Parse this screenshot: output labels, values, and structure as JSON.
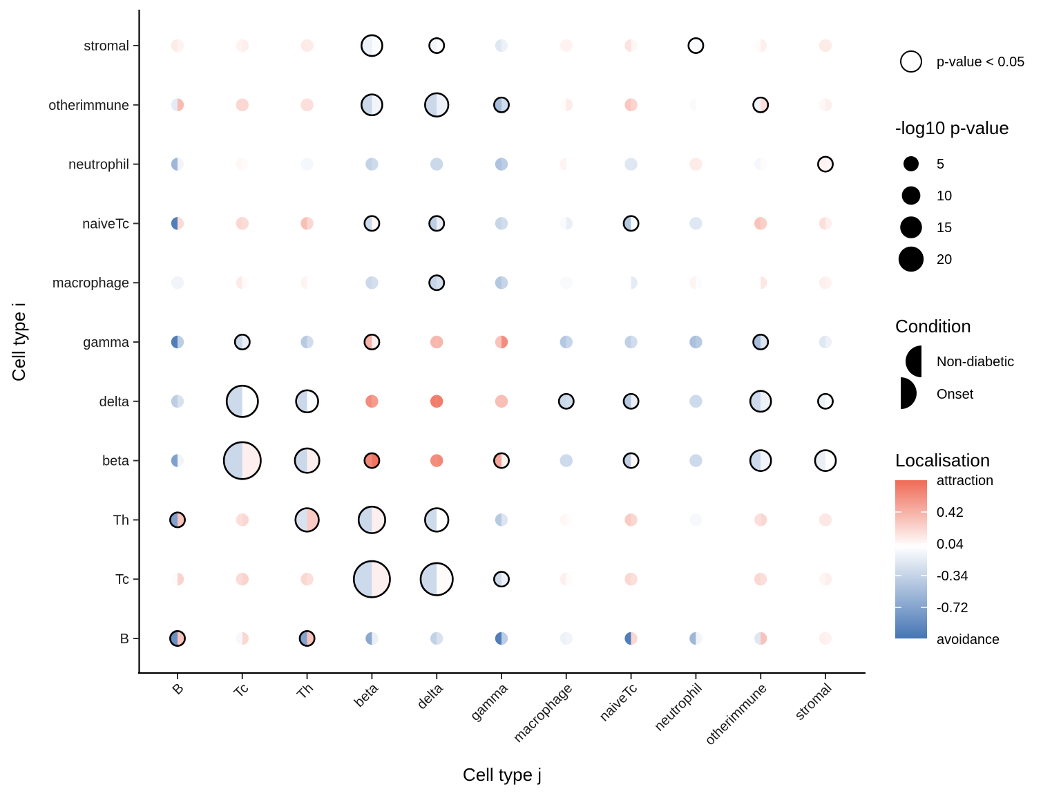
{
  "chart_data": {
    "type": "scatter",
    "subtype": "split-bubble matrix (half-circles per condition)",
    "xlabel": "Cell type j",
    "ylabel": "Cell type i",
    "x_categories": [
      "B",
      "Tc",
      "Th",
      "beta",
      "delta",
      "gamma",
      "macrophage",
      "naiveTc",
      "neutrophil",
      "otherimmune",
      "stromal"
    ],
    "y_categories": [
      "B",
      "Tc",
      "Th",
      "beta",
      "delta",
      "gamma",
      "macrophage",
      "naiveTc",
      "neutrophil",
      "otherimmune",
      "stromal"
    ],
    "legend": {
      "significance": {
        "label": "p-value < 0.05"
      },
      "size": {
        "title": "-log10 p-value",
        "breaks": [
          5,
          10,
          15,
          20
        ]
      },
      "condition": {
        "title": "Condition",
        "levels": [
          "Non-diabetic",
          "Onset"
        ],
        "sides": [
          "left",
          "right"
        ]
      },
      "color": {
        "title": "Localisation",
        "low_label": "avoidance",
        "high_label": "attraction",
        "ticks": [
          0.42,
          0.04,
          -0.34,
          -0.72
        ],
        "limits": [
          -1.05,
          0.75
        ],
        "low_color": "#4575b4",
        "mid_color": "#ffffff",
        "high_color": "#ef6a55"
      }
    },
    "cells": [
      {
        "i": "B",
        "j": "B",
        "nd": -0.85,
        "on": 0.3,
        "logp": 4,
        "sig": true
      },
      {
        "i": "B",
        "j": "Tc",
        "nd": -0.05,
        "on": 0.2,
        "logp": 3,
        "sig": false
      },
      {
        "i": "B",
        "j": "Th",
        "nd": -0.7,
        "on": 0.3,
        "logp": 4,
        "sig": true
      },
      {
        "i": "B",
        "j": "beta",
        "nd": -0.65,
        "on": -0.12,
        "logp": 3,
        "sig": false
      },
      {
        "i": "B",
        "j": "delta",
        "nd": -0.35,
        "on": -0.22,
        "logp": 3,
        "sig": false
      },
      {
        "i": "B",
        "j": "gamma",
        "nd": -0.98,
        "on": -0.38,
        "logp": 3,
        "sig": false
      },
      {
        "i": "B",
        "j": "macrophage",
        "nd": -0.1,
        "on": -0.08,
        "logp": 3,
        "sig": false
      },
      {
        "i": "B",
        "j": "naiveTc",
        "nd": -0.98,
        "on": 0.2,
        "logp": 3,
        "sig": false
      },
      {
        "i": "B",
        "j": "neutrophil",
        "nd": -0.55,
        "on": -0.08,
        "logp": 3,
        "sig": false
      },
      {
        "i": "B",
        "j": "otherimmune",
        "nd": -0.18,
        "on": 0.3,
        "logp": 3,
        "sig": false
      },
      {
        "i": "B",
        "j": "stromal",
        "nd": 0.08,
        "on": 0.06,
        "logp": 3,
        "sig": false
      },
      {
        "i": "Tc",
        "j": "B",
        "nd": -0.02,
        "on": 0.22,
        "logp": 3,
        "sig": false
      },
      {
        "i": "Tc",
        "j": "Tc",
        "nd": 0.18,
        "on": 0.22,
        "logp": 3,
        "sig": false
      },
      {
        "i": "Tc",
        "j": "Th",
        "nd": 0.2,
        "on": 0.16,
        "logp": 3,
        "sig": false
      },
      {
        "i": "Tc",
        "j": "beta",
        "nd": -0.28,
        "on": 0.08,
        "logp": 24,
        "sig": true
      },
      {
        "i": "Tc",
        "j": "delta",
        "nd": -0.28,
        "on": 0.02,
        "logp": 19,
        "sig": true
      },
      {
        "i": "Tc",
        "j": "gamma",
        "nd": -0.28,
        "on": -0.1,
        "logp": 4,
        "sig": false,
        "sig_outline": true
      },
      {
        "i": "Tc",
        "j": "macrophage",
        "nd": 0.08,
        "on": 0.02,
        "logp": 3,
        "sig": false
      },
      {
        "i": "Tc",
        "j": "naiveTc",
        "nd": 0.2,
        "on": 0.16,
        "logp": 3,
        "sig": false
      },
      {
        "i": "Tc",
        "j": "neutrophil",
        "nd": 0.0,
        "on": 0.0,
        "logp": 3,
        "sig": false
      },
      {
        "i": "Tc",
        "j": "otherimmune",
        "nd": 0.2,
        "on": 0.16,
        "logp": 3,
        "sig": false
      },
      {
        "i": "Tc",
        "j": "stromal",
        "nd": 0.05,
        "on": 0.08,
        "logp": 3,
        "sig": false
      },
      {
        "i": "Th",
        "j": "B",
        "nd": -0.72,
        "on": 0.3,
        "logp": 4,
        "sig": true
      },
      {
        "i": "Th",
        "j": "Tc",
        "nd": 0.16,
        "on": 0.2,
        "logp": 3,
        "sig": false
      },
      {
        "i": "Th",
        "j": "Th",
        "nd": -0.22,
        "on": 0.26,
        "logp": 10,
        "sig": true
      },
      {
        "i": "Th",
        "j": "beta",
        "nd": -0.3,
        "on": 0.08,
        "logp": 13,
        "sig": true
      },
      {
        "i": "Th",
        "j": "delta",
        "nd": -0.28,
        "on": 0.0,
        "logp": 10,
        "sig": true
      },
      {
        "i": "Th",
        "j": "gamma",
        "nd": -0.4,
        "on": -0.2,
        "logp": 3,
        "sig": false
      },
      {
        "i": "Th",
        "j": "macrophage",
        "nd": 0.04,
        "on": 0.02,
        "logp": 3,
        "sig": false
      },
      {
        "i": "Th",
        "j": "naiveTc",
        "nd": 0.26,
        "on": 0.2,
        "logp": 3,
        "sig": false
      },
      {
        "i": "Th",
        "j": "neutrophil",
        "nd": -0.05,
        "on": -0.05,
        "logp": 3,
        "sig": false
      },
      {
        "i": "Th",
        "j": "otherimmune",
        "nd": 0.16,
        "on": 0.2,
        "logp": 3,
        "sig": false
      },
      {
        "i": "Th",
        "j": "stromal",
        "nd": 0.12,
        "on": 0.12,
        "logp": 3,
        "sig": false
      },
      {
        "i": "beta",
        "j": "B",
        "nd": -0.72,
        "on": -0.08,
        "logp": 3,
        "sig": false
      },
      {
        "i": "beta",
        "j": "Tc",
        "nd": -0.3,
        "on": 0.08,
        "logp": 25,
        "sig": true
      },
      {
        "i": "beta",
        "j": "Th",
        "nd": -0.3,
        "on": 0.08,
        "logp": 11,
        "sig": true
      },
      {
        "i": "beta",
        "j": "beta",
        "nd": 0.6,
        "on": 0.7,
        "logp": 4,
        "sig": true
      },
      {
        "i": "beta",
        "j": "delta",
        "nd": 0.58,
        "on": 0.6,
        "logp": 3,
        "sig": false
      },
      {
        "i": "beta",
        "j": "gamma",
        "nd": 0.45,
        "on": 0.06,
        "logp": 4,
        "sig": true
      },
      {
        "i": "beta",
        "j": "macrophage",
        "nd": -0.28,
        "on": -0.28,
        "logp": 3,
        "sig": false
      },
      {
        "i": "beta",
        "j": "naiveTc",
        "nd": -0.36,
        "on": 0.02,
        "logp": 4,
        "sig": true
      },
      {
        "i": "beta",
        "j": "neutrophil",
        "nd": -0.28,
        "on": -0.28,
        "logp": 3,
        "sig": false
      },
      {
        "i": "beta",
        "j": "otherimmune",
        "nd": -0.28,
        "on": -0.08,
        "logp": 8,
        "sig": true
      },
      {
        "i": "beta",
        "j": "stromal",
        "nd": -0.12,
        "on": 0.0,
        "logp": 8,
        "sig": true
      },
      {
        "i": "delta",
        "j": "B",
        "nd": -0.38,
        "on": -0.22,
        "logp": 3,
        "sig": false
      },
      {
        "i": "delta",
        "j": "Tc",
        "nd": -0.28,
        "on": 0.0,
        "logp": 18,
        "sig": true
      },
      {
        "i": "delta",
        "j": "Th",
        "nd": -0.3,
        "on": -0.02,
        "logp": 9,
        "sig": true
      },
      {
        "i": "delta",
        "j": "beta",
        "nd": 0.58,
        "on": 0.5,
        "logp": 3,
        "sig": false
      },
      {
        "i": "delta",
        "j": "delta",
        "nd": 0.65,
        "on": 0.65,
        "logp": 3,
        "sig": false
      },
      {
        "i": "delta",
        "j": "gamma",
        "nd": 0.32,
        "on": 0.32,
        "logp": 3,
        "sig": false
      },
      {
        "i": "delta",
        "j": "macrophage",
        "nd": -0.3,
        "on": -0.26,
        "logp": 4,
        "sig": true
      },
      {
        "i": "delta",
        "j": "naiveTc",
        "nd": -0.42,
        "on": -0.12,
        "logp": 4,
        "sig": true
      },
      {
        "i": "delta",
        "j": "neutrophil",
        "nd": -0.28,
        "on": -0.28,
        "logp": 3,
        "sig": false
      },
      {
        "i": "delta",
        "j": "otherimmune",
        "nd": -0.28,
        "on": -0.1,
        "logp": 8,
        "sig": true
      },
      {
        "i": "delta",
        "j": "stromal",
        "nd": -0.1,
        "on": -0.02,
        "logp": 4,
        "sig": true
      },
      {
        "i": "gamma",
        "j": "B",
        "nd": -0.98,
        "on": -0.38,
        "logp": 3,
        "sig": false
      },
      {
        "i": "gamma",
        "j": "Tc",
        "nd": -0.3,
        "on": -0.12,
        "logp": 4,
        "sig": true
      },
      {
        "i": "gamma",
        "j": "Th",
        "nd": -0.4,
        "on": -0.26,
        "logp": 3,
        "sig": false
      },
      {
        "i": "gamma",
        "j": "beta",
        "nd": 0.38,
        "on": 0.08,
        "logp": 4,
        "sig": true
      },
      {
        "i": "gamma",
        "j": "delta",
        "nd": 0.36,
        "on": 0.36,
        "logp": 3,
        "sig": false
      },
      {
        "i": "gamma",
        "j": "gamma",
        "nd": 0.3,
        "on": 0.58,
        "logp": 3,
        "sig": false
      },
      {
        "i": "gamma",
        "j": "macrophage",
        "nd": -0.42,
        "on": -0.32,
        "logp": 3,
        "sig": false
      },
      {
        "i": "gamma",
        "j": "naiveTc",
        "nd": -0.36,
        "on": -0.26,
        "logp": 3,
        "sig": false
      },
      {
        "i": "gamma",
        "j": "neutrophil",
        "nd": -0.48,
        "on": -0.4,
        "logp": 3,
        "sig": false
      },
      {
        "i": "gamma",
        "j": "otherimmune",
        "nd": -0.5,
        "on": -0.2,
        "logp": 4,
        "sig": true
      },
      {
        "i": "gamma",
        "j": "stromal",
        "nd": -0.18,
        "on": -0.1,
        "logp": 3,
        "sig": false
      },
      {
        "i": "macrophage",
        "j": "B",
        "nd": -0.08,
        "on": -0.08,
        "logp": 3,
        "sig": false
      },
      {
        "i": "macrophage",
        "j": "Tc",
        "nd": 0.1,
        "on": 0.02,
        "logp": 3,
        "sig": false
      },
      {
        "i": "macrophage",
        "j": "Th",
        "nd": 0.06,
        "on": 0.0,
        "logp": 3,
        "sig": false
      },
      {
        "i": "macrophage",
        "j": "beta",
        "nd": -0.3,
        "on": -0.24,
        "logp": 3,
        "sig": false
      },
      {
        "i": "macrophage",
        "j": "delta",
        "nd": -0.32,
        "on": -0.24,
        "logp": 4,
        "sig": true
      },
      {
        "i": "macrophage",
        "j": "gamma",
        "nd": -0.42,
        "on": -0.32,
        "logp": 3,
        "sig": false
      },
      {
        "i": "macrophage",
        "j": "macrophage",
        "nd": -0.04,
        "on": -0.04,
        "logp": 3,
        "sig": false
      },
      {
        "i": "macrophage",
        "j": "naiveTc",
        "nd": 0.0,
        "on": -0.15,
        "logp": 3,
        "sig": false
      },
      {
        "i": "macrophage",
        "j": "neutrophil",
        "nd": 0.06,
        "on": -0.02,
        "logp": 3,
        "sig": false
      },
      {
        "i": "macrophage",
        "j": "otherimmune",
        "nd": 0.0,
        "on": 0.12,
        "logp": 3,
        "sig": false
      },
      {
        "i": "macrophage",
        "j": "stromal",
        "nd": 0.08,
        "on": 0.06,
        "logp": 3,
        "sig": false
      },
      {
        "i": "naiveTc",
        "j": "B",
        "nd": -0.98,
        "on": 0.18,
        "logp": 3,
        "sig": false
      },
      {
        "i": "naiveTc",
        "j": "Tc",
        "nd": 0.2,
        "on": 0.18,
        "logp": 3,
        "sig": false
      },
      {
        "i": "naiveTc",
        "j": "Th",
        "nd": 0.32,
        "on": 0.2,
        "logp": 3,
        "sig": false
      },
      {
        "i": "naiveTc",
        "j": "beta",
        "nd": -0.28,
        "on": 0.04,
        "logp": 4,
        "sig": true
      },
      {
        "i": "naiveTc",
        "j": "delta",
        "nd": -0.38,
        "on": -0.12,
        "logp": 4,
        "sig": true
      },
      {
        "i": "naiveTc",
        "j": "gamma",
        "nd": -0.32,
        "on": -0.26,
        "logp": 3,
        "sig": false
      },
      {
        "i": "naiveTc",
        "j": "macrophage",
        "nd": -0.04,
        "on": -0.12,
        "logp": 3,
        "sig": false
      },
      {
        "i": "naiveTc",
        "j": "naiveTc",
        "nd": -0.42,
        "on": -0.02,
        "logp": 4,
        "sig": true
      },
      {
        "i": "naiveTc",
        "j": "neutrophil",
        "nd": -0.18,
        "on": -0.18,
        "logp": 3,
        "sig": false
      },
      {
        "i": "naiveTc",
        "j": "otherimmune",
        "nd": 0.3,
        "on": 0.24,
        "logp": 3,
        "sig": false
      },
      {
        "i": "naiveTc",
        "j": "stromal",
        "nd": 0.16,
        "on": 0.08,
        "logp": 3,
        "sig": false
      },
      {
        "i": "neutrophil",
        "j": "B",
        "nd": -0.55,
        "on": -0.08,
        "logp": 3,
        "sig": false
      },
      {
        "i": "neutrophil",
        "j": "Tc",
        "nd": 0.04,
        "on": 0.02,
        "logp": 3,
        "sig": false
      },
      {
        "i": "neutrophil",
        "j": "Th",
        "nd": -0.06,
        "on": -0.06,
        "logp": 3,
        "sig": false
      },
      {
        "i": "neutrophil",
        "j": "beta",
        "nd": -0.34,
        "on": -0.28,
        "logp": 3,
        "sig": false
      },
      {
        "i": "neutrophil",
        "j": "delta",
        "nd": -0.3,
        "on": -0.3,
        "logp": 3,
        "sig": false
      },
      {
        "i": "neutrophil",
        "j": "gamma",
        "nd": -0.46,
        "on": -0.38,
        "logp": 3,
        "sig": false
      },
      {
        "i": "neutrophil",
        "j": "macrophage",
        "nd": 0.06,
        "on": 0.0,
        "logp": 3,
        "sig": false
      },
      {
        "i": "neutrophil",
        "j": "naiveTc",
        "nd": -0.18,
        "on": -0.18,
        "logp": 3,
        "sig": false
      },
      {
        "i": "neutrophil",
        "j": "neutrophil",
        "nd": 0.1,
        "on": 0.1,
        "logp": 3,
        "sig": false
      },
      {
        "i": "neutrophil",
        "j": "otherimmune",
        "nd": -0.06,
        "on": 0.02,
        "logp": 3,
        "sig": false
      },
      {
        "i": "neutrophil",
        "j": "stromal",
        "nd": 0.06,
        "on": 0.04,
        "logp": 4,
        "sig": true
      },
      {
        "i": "otherimmune",
        "j": "B",
        "nd": -0.15,
        "on": 0.34,
        "logp": 3,
        "sig": false
      },
      {
        "i": "otherimmune",
        "j": "Tc",
        "nd": 0.2,
        "on": 0.2,
        "logp": 3,
        "sig": false
      },
      {
        "i": "otherimmune",
        "j": "Th",
        "nd": 0.16,
        "on": 0.16,
        "logp": 3,
        "sig": false
      },
      {
        "i": "otherimmune",
        "j": "beta",
        "nd": -0.3,
        "on": -0.08,
        "logp": 8,
        "sig": true
      },
      {
        "i": "otherimmune",
        "j": "delta",
        "nd": -0.3,
        "on": -0.1,
        "logp": 10,
        "sig": true
      },
      {
        "i": "otherimmune",
        "j": "gamma",
        "nd": -0.5,
        "on": -0.26,
        "logp": 4,
        "sig": true
      },
      {
        "i": "otherimmune",
        "j": "macrophage",
        "nd": 0.02,
        "on": 0.1,
        "logp": 3,
        "sig": false
      },
      {
        "i": "otherimmune",
        "j": "naiveTc",
        "nd": 0.28,
        "on": 0.22,
        "logp": 3,
        "sig": false
      },
      {
        "i": "otherimmune",
        "j": "neutrophil",
        "nd": -0.04,
        "on": null,
        "logp": 3,
        "sig": false
      },
      {
        "i": "otherimmune",
        "j": "otherimmune",
        "nd": -0.08,
        "on": 0.16,
        "logp": 4,
        "sig": true
      },
      {
        "i": "otherimmune",
        "j": "stromal",
        "nd": 0.04,
        "on": 0.08,
        "logp": 3,
        "sig": false
      },
      {
        "i": "stromal",
        "j": "B",
        "nd": 0.1,
        "on": 0.06,
        "logp": 3,
        "sig": false
      },
      {
        "i": "stromal",
        "j": "Tc",
        "nd": 0.06,
        "on": 0.08,
        "logp": 3,
        "sig": false
      },
      {
        "i": "stromal",
        "j": "Th",
        "nd": 0.1,
        "on": 0.1,
        "logp": 3,
        "sig": false
      },
      {
        "i": "stromal",
        "j": "beta",
        "nd": -0.1,
        "on": -0.02,
        "logp": 8,
        "sig": true
      },
      {
        "i": "stromal",
        "j": "delta",
        "nd": -0.08,
        "on": -0.02,
        "logp": 4,
        "sig": true
      },
      {
        "i": "stromal",
        "j": "gamma",
        "nd": -0.18,
        "on": -0.1,
        "logp": 3,
        "sig": false
      },
      {
        "i": "stromal",
        "j": "macrophage",
        "nd": 0.06,
        "on": 0.06,
        "logp": 3,
        "sig": false
      },
      {
        "i": "stromal",
        "j": "naiveTc",
        "nd": 0.14,
        "on": 0.04,
        "logp": 3,
        "sig": false
      },
      {
        "i": "stromal",
        "j": "neutrophil",
        "nd": -0.02,
        "on": -0.02,
        "logp": 4,
        "sig": true
      },
      {
        "i": "stromal",
        "j": "otherimmune",
        "nd": 0.02,
        "on": 0.08,
        "logp": 3,
        "sig": false
      },
      {
        "i": "stromal",
        "j": "stromal",
        "nd": 0.1,
        "on": 0.1,
        "logp": 3,
        "sig": false
      }
    ]
  }
}
